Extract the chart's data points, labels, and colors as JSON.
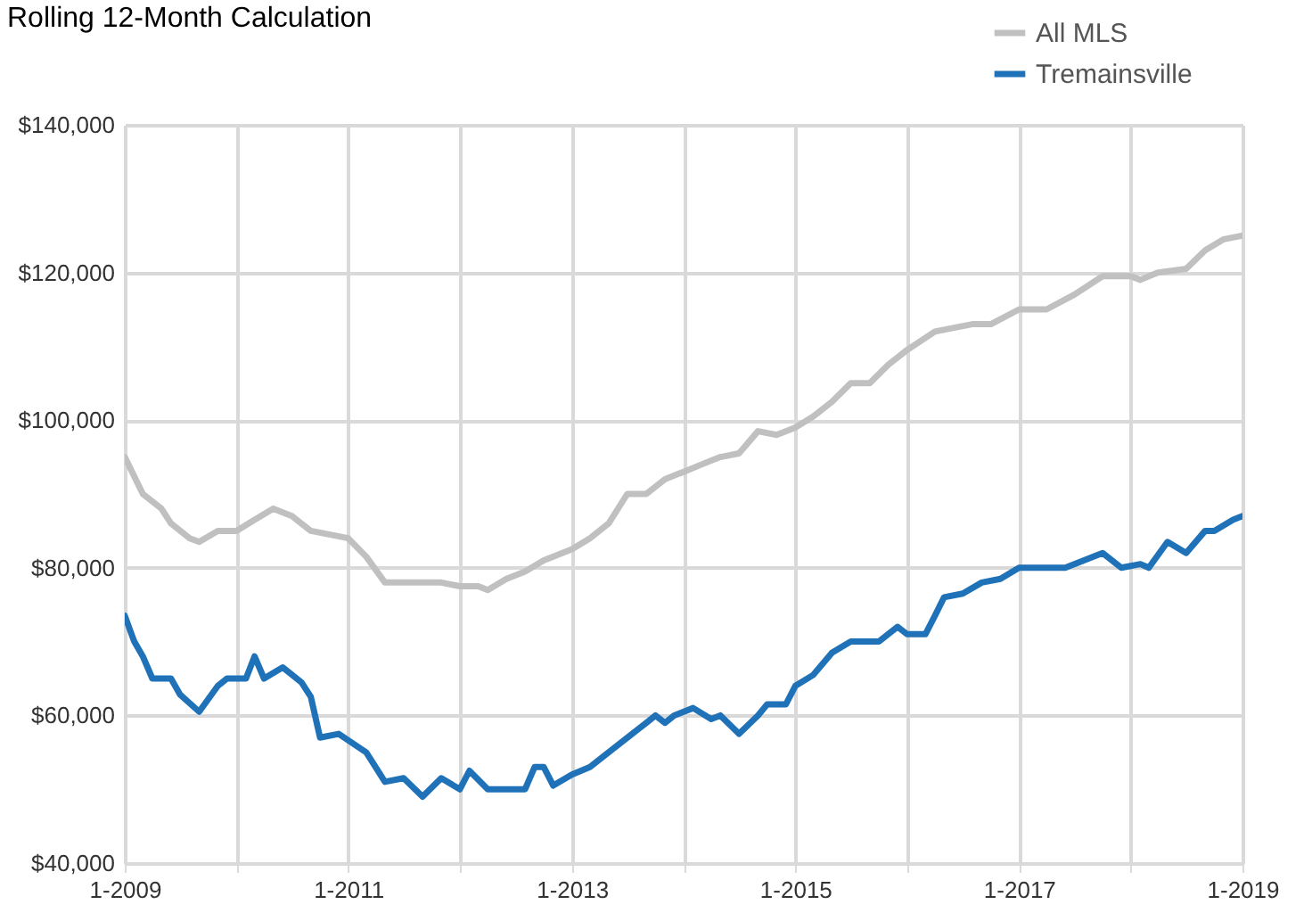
{
  "chart_data": {
    "type": "line",
    "title": "Rolling 12-Month Calculation",
    "xlim": [
      "2009-01",
      "2019-01"
    ],
    "xticks": [
      {
        "value": "2009-01",
        "label": "1-2009"
      },
      {
        "value": "2010-01",
        "label": null
      },
      {
        "value": "2011-01",
        "label": "1-2011"
      },
      {
        "value": "2012-01",
        "label": null
      },
      {
        "value": "2013-01",
        "label": "1-2013"
      },
      {
        "value": "2014-01",
        "label": null
      },
      {
        "value": "2015-01",
        "label": "1-2015"
      },
      {
        "value": "2016-01",
        "label": null
      },
      {
        "value": "2017-01",
        "label": "1-2017"
      },
      {
        "value": "2018-01",
        "label": null
      },
      {
        "value": "2019-01",
        "label": "1-2019"
      }
    ],
    "ylim": [
      40000,
      140000
    ],
    "yticks": [
      {
        "value": 40000,
        "label": "$40,000"
      },
      {
        "value": 60000,
        "label": "$60,000"
      },
      {
        "value": 80000,
        "label": "$80,000"
      },
      {
        "value": 100000,
        "label": "$100,000"
      },
      {
        "value": 120000,
        "label": "$120,000"
      },
      {
        "value": 140000,
        "label": "$140,000"
      }
    ],
    "grid": true,
    "legend": "top right",
    "series": [
      {
        "name": "All MLS",
        "color": "#c0c0c0",
        "x": [
          "2009-01",
          "2009-03",
          "2009-05",
          "2009-06",
          "2009-08",
          "2009-09",
          "2009-11",
          "2010-01",
          "2010-03",
          "2010-05",
          "2010-07",
          "2010-09",
          "2011-01",
          "2011-03",
          "2011-05",
          "2011-08",
          "2011-11",
          "2012-01",
          "2012-03",
          "2012-04",
          "2012-06",
          "2012-08",
          "2012-10",
          "2013-01",
          "2013-03",
          "2013-05",
          "2013-07",
          "2013-09",
          "2013-11",
          "2014-01",
          "2014-03",
          "2014-05",
          "2014-07",
          "2014-09",
          "2014-11",
          "2015-01",
          "2015-03",
          "2015-05",
          "2015-07",
          "2015-09",
          "2015-11",
          "2016-01",
          "2016-04",
          "2016-08",
          "2016-10",
          "2017-01",
          "2017-04",
          "2017-07",
          "2017-10",
          "2018-01",
          "2018-02",
          "2018-04",
          "2018-07",
          "2018-09",
          "2018-11",
          "2019-01"
        ],
        "values": [
          95000,
          90000,
          88000,
          86000,
          84000,
          83500,
          85000,
          85000,
          86500,
          88000,
          87000,
          85000,
          84000,
          81500,
          78000,
          78000,
          78000,
          77500,
          77500,
          77000,
          78500,
          79500,
          81000,
          82500,
          84000,
          86000,
          90000,
          90000,
          92000,
          93000,
          94000,
          95000,
          95500,
          98500,
          98000,
          99000,
          100500,
          102500,
          105000,
          105000,
          107500,
          109500,
          112000,
          113000,
          113000,
          115000,
          115000,
          117000,
          119500,
          119500,
          119000,
          120000,
          120500,
          123000,
          124500,
          125000
        ]
      },
      {
        "name": "Tremainsville",
        "color": "#1f72b8",
        "x": [
          "2009-01",
          "2009-02",
          "2009-03",
          "2009-04",
          "2009-06",
          "2009-07",
          "2009-09",
          "2009-11",
          "2009-12",
          "2010-02",
          "2010-03",
          "2010-04",
          "2010-06",
          "2010-08",
          "2010-09",
          "2010-10",
          "2010-12",
          "2011-03",
          "2011-05",
          "2011-07",
          "2011-09",
          "2011-11",
          "2012-01",
          "2012-02",
          "2012-04",
          "2012-08",
          "2012-09",
          "2012-10",
          "2012-11",
          "2013-01",
          "2013-03",
          "2013-05",
          "2013-08",
          "2013-09",
          "2013-10",
          "2013-11",
          "2013-12",
          "2014-02",
          "2014-04",
          "2014-05",
          "2014-07",
          "2014-09",
          "2014-10",
          "2014-12",
          "2015-01",
          "2015-03",
          "2015-05",
          "2015-07",
          "2015-10",
          "2015-12",
          "2016-01",
          "2016-03",
          "2016-04",
          "2016-05",
          "2016-07",
          "2016-09",
          "2016-11",
          "2017-01",
          "2017-06",
          "2017-08",
          "2017-10",
          "2017-12",
          "2018-02",
          "2018-03",
          "2018-05",
          "2018-07",
          "2018-09",
          "2018-10",
          "2018-12",
          "2019-01"
        ],
        "values": [
          73500,
          70000,
          68000,
          65000,
          65000,
          62800,
          60500,
          64000,
          65000,
          65000,
          68000,
          65000,
          66500,
          64500,
          62500,
          57000,
          57500,
          55000,
          51000,
          51500,
          49000,
          51500,
          50000,
          52500,
          50000,
          50000,
          53000,
          53000,
          50500,
          52000,
          53000,
          55000,
          58000,
          59000,
          60000,
          59000,
          60000,
          61000,
          59500,
          60000,
          57500,
          60000,
          61500,
          61500,
          64000,
          65500,
          68500,
          70000,
          70000,
          72000,
          71000,
          71000,
          73500,
          76000,
          76500,
          78000,
          78500,
          80000,
          80000,
          81000,
          82000,
          80000,
          80500,
          80000,
          83500,
          82000,
          85000,
          85000,
          86500,
          87000
        ]
      }
    ]
  }
}
